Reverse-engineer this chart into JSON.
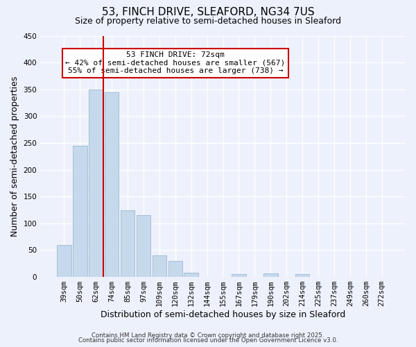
{
  "title": "53, FINCH DRIVE, SLEAFORD, NG34 7US",
  "subtitle": "Size of property relative to semi-detached houses in Sleaford",
  "bar_labels": [
    "39sqm",
    "50sqm",
    "62sqm",
    "74sqm",
    "85sqm",
    "97sqm",
    "109sqm",
    "120sqm",
    "132sqm",
    "144sqm",
    "155sqm",
    "167sqm",
    "179sqm",
    "190sqm",
    "202sqm",
    "214sqm",
    "225sqm",
    "237sqm",
    "249sqm",
    "260sqm",
    "272sqm"
  ],
  "bar_values": [
    60,
    245,
    350,
    345,
    125,
    115,
    40,
    30,
    8,
    0,
    0,
    5,
    0,
    7,
    0,
    5,
    0,
    0,
    0,
    0,
    0
  ],
  "bar_color": "#c6d9ec",
  "bar_edge_color": "#9ab8d0",
  "xlabel": "Distribution of semi-detached houses by size in Sleaford",
  "ylabel": "Number of semi-detached properties",
  "ylim": [
    0,
    450
  ],
  "yticks": [
    0,
    50,
    100,
    150,
    200,
    250,
    300,
    350,
    400,
    450
  ],
  "vline_x_index": 2,
  "vline_color": "#cc0000",
  "annotation_title": "53 FINCH DRIVE: 72sqm",
  "annotation_line1": "← 42% of semi-detached houses are smaller (567)",
  "annotation_line2": "55% of semi-detached houses are larger (738) →",
  "annotation_box_color": "#ffffff",
  "annotation_box_edge": "#cc0000",
  "footer1": "Contains HM Land Registry data © Crown copyright and database right 2025.",
  "footer2": "Contains public sector information licensed under the Open Government Licence v3.0.",
  "bg_color": "#edf1fb",
  "title_fontsize": 11,
  "subtitle_fontsize": 9,
  "axis_label_fontsize": 9,
  "tick_fontsize": 7.5
}
